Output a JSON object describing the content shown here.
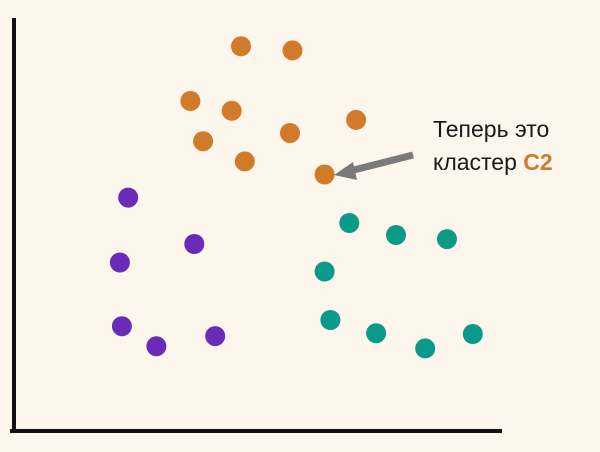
{
  "colors": {
    "background": "#fdf6ec",
    "axis": "#111111",
    "arrow": "#7a7a7a",
    "cluster_orange": "#d17a2a",
    "cluster_purple": "#6a2bb8",
    "cluster_teal": "#0b9a8a"
  },
  "annotation": {
    "line1": "Теперь это",
    "line2_text": "кластер ",
    "line2_highlight": "С2"
  },
  "chart_data": {
    "type": "scatter",
    "title": "",
    "xlabel": "",
    "ylabel": "",
    "xlim": [
      0,
      100
    ],
    "ylim": [
      0,
      100
    ],
    "grid": false,
    "legend": "none",
    "series": [
      {
        "color": "#d17a2a",
        "points": [
          [
            46.7,
            93.6
          ],
          [
            57.3,
            92.6
          ],
          [
            36.3,
            80.3
          ],
          [
            44.8,
            77.9
          ],
          [
            38.9,
            70.5
          ],
          [
            56.8,
            72.5
          ],
          [
            70.4,
            75.7
          ],
          [
            47.5,
            65.6
          ],
          [
            63.9,
            62.4
          ]
        ]
      },
      {
        "color": "#6a2bb8",
        "points": [
          [
            23.5,
            56.8
          ],
          [
            37.1,
            45.5
          ],
          [
            21.8,
            41.0
          ],
          [
            22.2,
            25.5
          ],
          [
            29.3,
            20.6
          ],
          [
            41.4,
            23.1
          ]
        ]
      },
      {
        "color": "#0b9a8a",
        "points": [
          [
            69.0,
            50.6
          ],
          [
            78.6,
            47.7
          ],
          [
            89.1,
            46.7
          ],
          [
            63.9,
            38.8
          ],
          [
            65.1,
            27.0
          ],
          [
            74.5,
            23.8
          ],
          [
            84.6,
            20.1
          ],
          [
            94.4,
            23.6
          ]
        ]
      }
    ],
    "annotations": [
      {
        "text": "Теперь это кластер С2",
        "target": [
          63.9,
          62.4
        ]
      }
    ]
  }
}
